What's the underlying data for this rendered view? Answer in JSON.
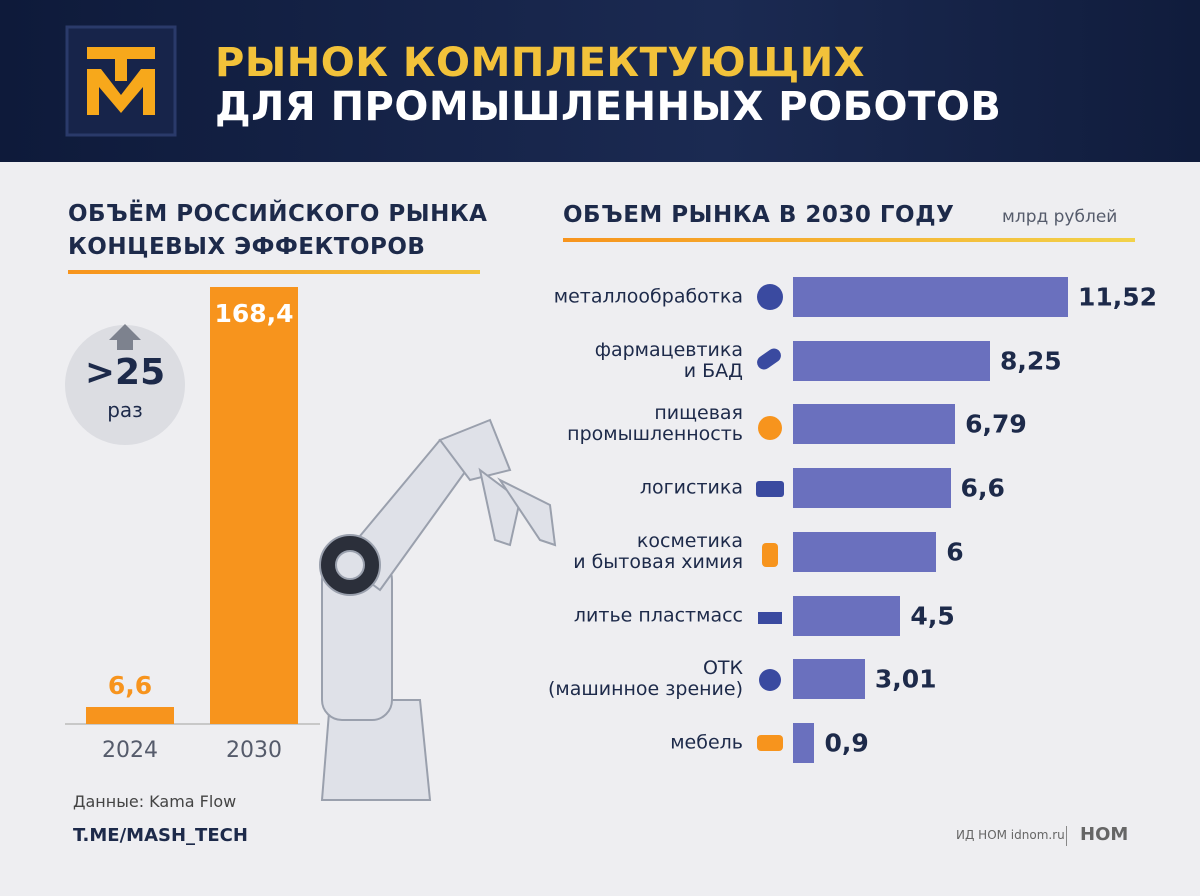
{
  "header": {
    "title_line1": "РЫНОК КОМПЛЕКТУЮЩИХ",
    "title_line2": "ДЛЯ ПРОМЫШЛЕННЫХ РОБОТОВ"
  },
  "chart_data": [
    {
      "type": "bar",
      "title": "ОБЪЁМ РОССИЙСКОГО РЫНКА\nКОНЦЕВЫХ ЭФФЕКТОРОВ",
      "categories": [
        "2024",
        "2030"
      ],
      "values": [
        6.6,
        168.4
      ],
      "value_labels": [
        "6,6",
        "168,4"
      ],
      "color": "#f7941d",
      "annotations": [
        ">25",
        "раз"
      ]
    },
    {
      "type": "barh",
      "title": "ОБЪЕМ РЫНКА В 2030 ГОДУ",
      "unit": "млрд рублей",
      "categories": [
        "металлообработка",
        "фармацевтика\nи БАД",
        "пищевая\nпромышленность",
        "логистика",
        "косметика\nи бытовая химия",
        "литье пластмасс",
        "ОТК\n(машинное зрение)",
        "мебель"
      ],
      "values": [
        11.52,
        8.25,
        6.79,
        6.6,
        6,
        4.5,
        3.01,
        0.9
      ],
      "value_labels": [
        "11,52",
        "8,25",
        "6,79",
        "6,6",
        "6",
        "4,5",
        "3,01",
        "0,9"
      ],
      "color": "#6a70be"
    }
  ],
  "source": "Данные: Kama Flow",
  "footer": {
    "channel": "T.ME/MASH_TECH",
    "publisher": "ИД НОМ idnom.ru",
    "brand": "НОМ"
  }
}
